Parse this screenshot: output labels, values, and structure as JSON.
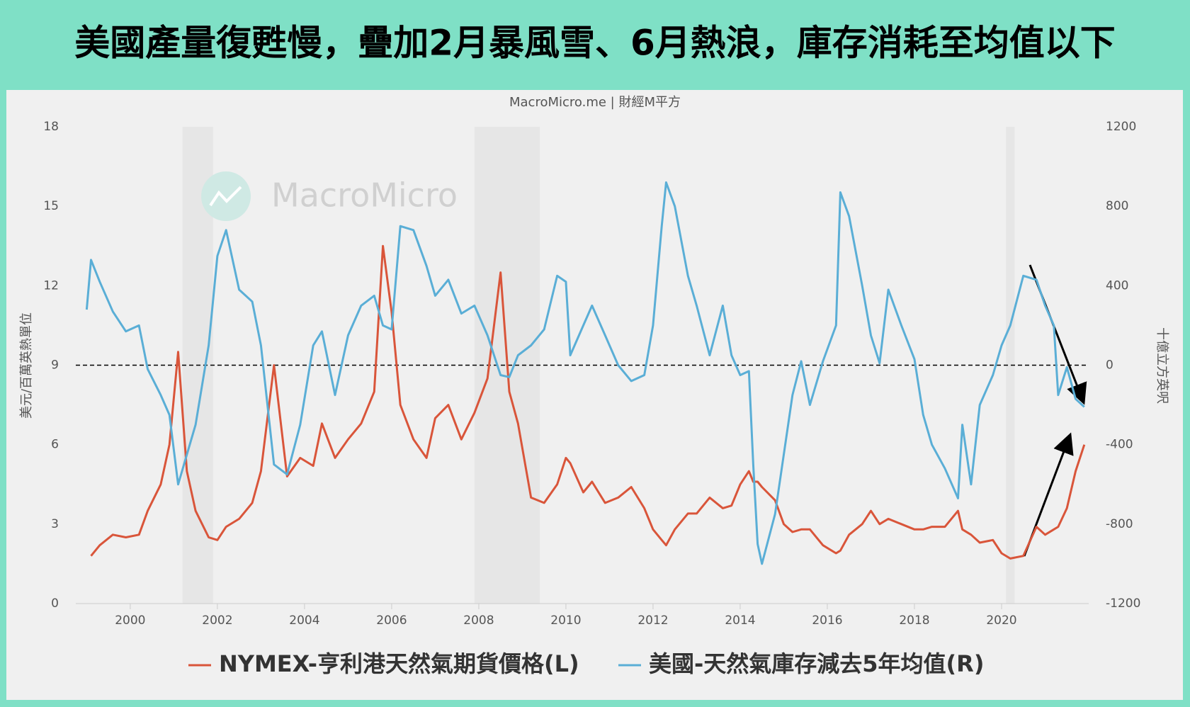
{
  "chart_data": {
    "type": "line",
    "title": "美國產量復甦慢，疊加2月暴風雪、6月熱浪，庫存消耗至均值以下",
    "source": "MacroMicro.me | 財經M平方",
    "watermark": "MacroMicro",
    "y_label": "美元/百萬英熱單位",
    "y2_label": "十億立方英呎",
    "x": [
      1999.0,
      1999.1,
      1999.3,
      1999.6,
      1999.9,
      2000.2,
      2000.4,
      2000.7,
      2000.9,
      2001.1,
      2001.3,
      2001.5,
      2001.8,
      2002.0,
      2002.2,
      2002.5,
      2002.8,
      2003.0,
      2003.3,
      2003.6,
      2003.9,
      2004.2,
      2004.4,
      2004.7,
      2005.0,
      2005.3,
      2005.6,
      2005.8,
      2006.0,
      2006.2,
      2006.5,
      2006.8,
      2007.0,
      2007.3,
      2007.6,
      2007.9,
      2008.2,
      2008.5,
      2008.7,
      2008.9,
      2009.2,
      2009.5,
      2009.8,
      2010.0,
      2010.1,
      2010.4,
      2010.6,
      2010.9,
      2011.2,
      2011.5,
      2011.8,
      2012.0,
      2012.2,
      2012.3,
      2012.5,
      2012.8,
      2013.0,
      2013.3,
      2013.6,
      2013.8,
      2014.0,
      2014.2,
      2014.3,
      2014.4,
      2014.5,
      2014.8,
      2015.0,
      2015.2,
      2015.4,
      2015.6,
      2015.9,
      2016.2,
      2016.3,
      2016.5,
      2016.8,
      2017.0,
      2017.2,
      2017.4,
      2017.7,
      2018.0,
      2018.2,
      2018.4,
      2018.7,
      2019.0,
      2019.1,
      2019.3,
      2019.5,
      2019.8,
      2020.0,
      2020.2,
      2020.5,
      2020.8,
      2021.0,
      2021.2,
      2021.3,
      2021.5,
      2021.7,
      2021.9
    ],
    "series": [
      {
        "name": "NYMEX-亨利港天然氣期貨價格(L)",
        "color": "#d9553a",
        "axis": "y",
        "values": [
          null,
          1.8,
          2.2,
          2.6,
          2.5,
          2.6,
          3.5,
          4.5,
          6.0,
          9.5,
          5.0,
          3.5,
          2.5,
          2.4,
          2.9,
          3.2,
          3.8,
          5.0,
          9.0,
          4.8,
          5.5,
          5.2,
          6.8,
          5.5,
          6.2,
          6.8,
          8.0,
          13.5,
          11.0,
          7.5,
          6.2,
          5.5,
          7.0,
          7.5,
          6.2,
          7.2,
          8.5,
          12.5,
          8.0,
          6.8,
          4.0,
          3.8,
          4.5,
          5.5,
          5.3,
          4.2,
          4.6,
          3.8,
          4.0,
          4.4,
          3.6,
          2.8,
          2.4,
          2.2,
          2.8,
          3.4,
          3.4,
          4.0,
          3.6,
          3.7,
          4.5,
          5.0,
          4.6,
          4.6,
          4.4,
          3.9,
          3.0,
          2.7,
          2.8,
          2.8,
          2.2,
          1.9,
          2.0,
          2.6,
          3.0,
          3.5,
          3.0,
          3.2,
          3.0,
          2.8,
          2.8,
          2.9,
          2.9,
          3.5,
          2.8,
          2.6,
          2.3,
          2.4,
          1.9,
          1.7,
          1.8,
          2.9,
          2.6,
          2.8,
          2.9,
          3.6,
          5.0,
          6.0
        ]
      },
      {
        "name": "美國-天然氣庫存減去5年均值(R)",
        "color": "#5aaed6",
        "axis": "y2",
        "values": [
          280,
          530,
          420,
          270,
          170,
          200,
          -20,
          -150,
          -250,
          -600,
          -450,
          -300,
          100,
          550,
          680,
          380,
          320,
          100,
          -500,
          -550,
          -300,
          100,
          170,
          -150,
          150,
          300,
          350,
          200,
          180,
          700,
          680,
          500,
          350,
          430,
          260,
          300,
          150,
          -50,
          -60,
          50,
          100,
          180,
          450,
          420,
          50,
          200,
          300,
          150,
          0,
          -80,
          -50,
          200,
          700,
          920,
          800,
          450,
          300,
          50,
          300,
          50,
          -50,
          -30,
          -500,
          -900,
          -1000,
          -750,
          -450,
          -150,
          20,
          -200,
          20,
          200,
          870,
          750,
          400,
          150,
          10,
          380,
          200,
          30,
          -250,
          -400,
          -520,
          -670,
          -300,
          -600,
          -200,
          -50,
          100,
          200,
          450,
          430,
          300,
          200,
          -150,
          -10,
          -170,
          -210
        ]
      }
    ],
    "xlim": [
      1998.75,
      2022
    ],
    "xticks": [
      2000,
      2002,
      2004,
      2006,
      2008,
      2010,
      2012,
      2014,
      2016,
      2018,
      2020
    ],
    "ylim": [
      0,
      18
    ],
    "yticks": [
      0,
      3,
      6,
      9,
      12,
      15,
      18
    ],
    "y2lim": [
      -1200,
      1200
    ],
    "y2ticks": [
      -1200,
      -800,
      -400,
      0,
      400,
      800,
      1200
    ],
    "hline": 9,
    "shaded_ranges": [
      [
        2001.2,
        2001.9
      ],
      [
        2007.9,
        2009.4
      ],
      [
        2020.1,
        2020.3
      ]
    ]
  }
}
